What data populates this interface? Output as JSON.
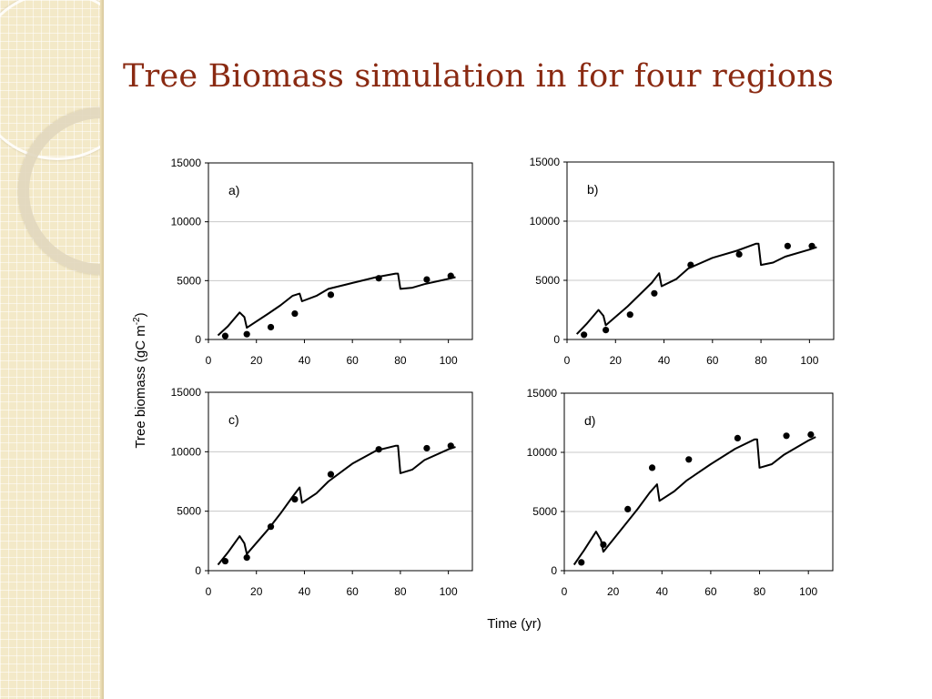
{
  "slide": {
    "title": "Tree Biomass simulation in for four regions"
  },
  "chart_data": [
    {
      "type": "line",
      "panel_label": "a)",
      "xlim": [
        0,
        110
      ],
      "ylim": [
        0,
        15000
      ],
      "xticks": [
        0,
        20,
        40,
        60,
        80,
        100
      ],
      "yticks": [
        0,
        5000,
        10000,
        15000
      ],
      "grid": "horizontal",
      "series": [
        {
          "kind": "line",
          "x": [
            4,
            8,
            13,
            15,
            16,
            25,
            30,
            35,
            38,
            39,
            45,
            50,
            60,
            70,
            78,
            79,
            80,
            85,
            90,
            100,
            103
          ],
          "y": [
            350,
            1100,
            2300,
            1900,
            1000,
            2200,
            2900,
            3700,
            3900,
            3250,
            3700,
            4300,
            4800,
            5300,
            5600,
            5600,
            4300,
            4400,
            4700,
            5150,
            5300
          ]
        },
        {
          "kind": "scatter",
          "x": [
            7,
            16,
            26,
            36,
            51,
            71,
            91,
            101
          ],
          "y": [
            300,
            450,
            1050,
            2200,
            3800,
            5200,
            5100,
            5400
          ]
        }
      ]
    },
    {
      "type": "line",
      "panel_label": "b)",
      "xlim": [
        0,
        110
      ],
      "ylim": [
        0,
        15000
      ],
      "xticks": [
        0,
        20,
        40,
        60,
        80,
        100
      ],
      "yticks": [
        0,
        5000,
        10000,
        15000
      ],
      "grid": "horizontal",
      "series": [
        {
          "kind": "line",
          "x": [
            4,
            8,
            13,
            15,
            16,
            25,
            30,
            35,
            38,
            39,
            45,
            50,
            60,
            70,
            78,
            79,
            80,
            85,
            90,
            100,
            103
          ],
          "y": [
            450,
            1300,
            2500,
            2000,
            1200,
            2800,
            3800,
            4800,
            5600,
            4500,
            5100,
            6000,
            6900,
            7500,
            8100,
            8100,
            6300,
            6500,
            7000,
            7600,
            7800
          ]
        },
        {
          "kind": "scatter",
          "x": [
            7,
            16,
            26,
            36,
            51,
            71,
            91,
            101
          ],
          "y": [
            400,
            800,
            2100,
            3900,
            6300,
            7200,
            7900,
            7900
          ]
        }
      ]
    },
    {
      "type": "line",
      "panel_label": "c)",
      "xlim": [
        0,
        110
      ],
      "ylim": [
        0,
        15000
      ],
      "xticks": [
        0,
        20,
        40,
        60,
        80,
        100
      ],
      "yticks": [
        0,
        5000,
        10000,
        15000
      ],
      "grid": "horizontal",
      "series": [
        {
          "kind": "line",
          "x": [
            4,
            8,
            13,
            15,
            16,
            25,
            30,
            35,
            38,
            39,
            45,
            50,
            60,
            70,
            78,
            79,
            80,
            85,
            90,
            100,
            103
          ],
          "y": [
            500,
            1500,
            2900,
            2300,
            1400,
            3500,
            4800,
            6200,
            7000,
            5700,
            6500,
            7500,
            9000,
            10100,
            10500,
            10500,
            8200,
            8500,
            9300,
            10200,
            10400
          ]
        },
        {
          "kind": "scatter",
          "x": [
            7,
            16,
            26,
            36,
            51,
            71,
            91,
            101
          ],
          "y": [
            800,
            1100,
            3700,
            6000,
            8100,
            10200,
            10300,
            10500
          ]
        }
      ]
    },
    {
      "type": "line",
      "panel_label": "d)",
      "xlim": [
        0,
        110
      ],
      "ylim": [
        0,
        15000
      ],
      "xticks": [
        0,
        20,
        40,
        60,
        80,
        100
      ],
      "yticks": [
        0,
        5000,
        10000,
        15000
      ],
      "grid": "horizontal",
      "series": [
        {
          "kind": "line",
          "x": [
            4,
            8,
            13,
            15,
            16,
            25,
            30,
            35,
            38,
            39,
            45,
            50,
            60,
            70,
            78,
            79,
            80,
            85,
            90,
            100,
            103
          ],
          "y": [
            500,
            1700,
            3300,
            2600,
            1600,
            3900,
            5200,
            6600,
            7300,
            5900,
            6700,
            7600,
            9000,
            10300,
            11100,
            11100,
            8700,
            9000,
            9800,
            11000,
            11300
          ]
        },
        {
          "kind": "scatter",
          "x": [
            7,
            16,
            26,
            36,
            51,
            71,
            91,
            101
          ],
          "y": [
            700,
            2200,
            5200,
            8700,
            9400,
            11200,
            11400,
            11500
          ]
        }
      ]
    }
  ],
  "shared_axes": {
    "ylabel_main": "Tree biomass (gC m",
    "ylabel_sup": "-2",
    "ylabel_close": ")",
    "xlabel": "Time (yr)"
  }
}
